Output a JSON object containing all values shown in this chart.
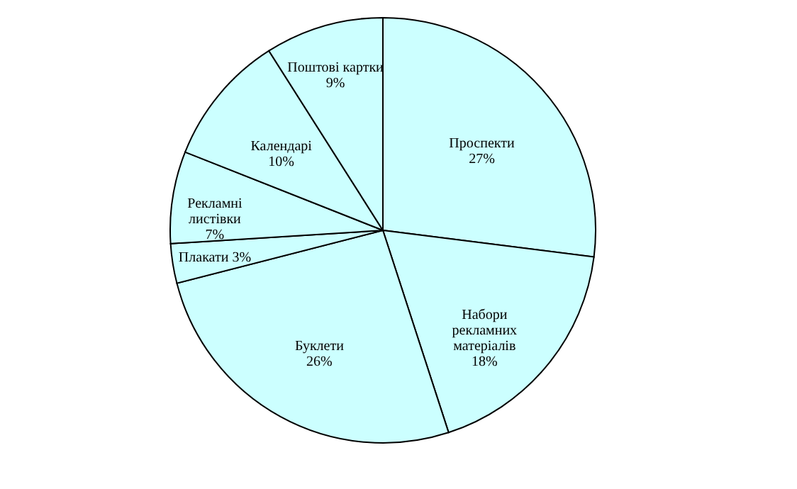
{
  "chart_data": {
    "type": "pie",
    "categories": [
      "Проспекти",
      "Набори рекламних матеріалів",
      "Буклети",
      "Плакати",
      "Рекламні листівки",
      "Календарі",
      "Поштові картки"
    ],
    "values": [
      27,
      18,
      26,
      3,
      7,
      10,
      9
    ],
    "value_labels": [
      "27%",
      "18%",
      "26%",
      "3%",
      "7%",
      "10%",
      "9%"
    ],
    "colors": [
      "#ccffff",
      "#ccffff",
      "#ccffff",
      "#ccffff",
      "#ccffff",
      "#ccffff",
      "#ccffff"
    ],
    "legend": false
  }
}
